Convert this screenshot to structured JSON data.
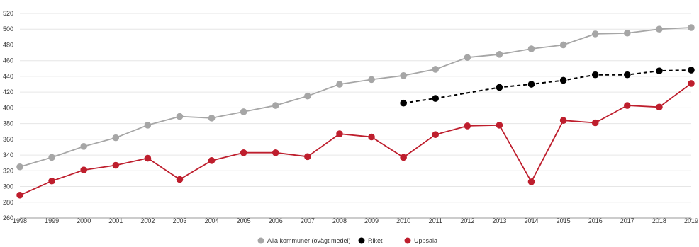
{
  "chart_data": {
    "type": "line",
    "title": "",
    "xlabel": "",
    "ylabel": "",
    "x": [
      "1998",
      "1999",
      "2000",
      "2001",
      "2002",
      "2003",
      "2004",
      "2005",
      "2006",
      "2007",
      "2008",
      "2009",
      "2010",
      "2011",
      "2012",
      "2013",
      "2014",
      "2015",
      "2016",
      "2017",
      "2018",
      "2019"
    ],
    "ylim": [
      260,
      520
    ],
    "yticks": [
      260,
      280,
      300,
      320,
      340,
      360,
      380,
      400,
      420,
      440,
      460,
      480,
      500,
      520
    ],
    "grid": true,
    "legend_position": "bottom",
    "series": [
      {
        "name": "Alla kommuner (ovägt medel)",
        "color": "#a6a6a6",
        "dash": false,
        "values": [
          325,
          337,
          351,
          362,
          378,
          389,
          387,
          395,
          403,
          415,
          430,
          436,
          441,
          449,
          464,
          468,
          475,
          480,
          494,
          495,
          500,
          502
        ]
      },
      {
        "name": "Riket",
        "color": "#000000",
        "dash": true,
        "values": [
          null,
          null,
          null,
          null,
          null,
          null,
          null,
          null,
          null,
          null,
          null,
          null,
          406,
          412,
          null,
          426,
          430,
          435,
          442,
          442,
          447,
          448
        ]
      },
      {
        "name": "Uppsala",
        "color": "#be1e2d",
        "dash": false,
        "values": [
          289,
          307,
          321,
          327,
          336,
          309,
          333,
          343,
          343,
          338,
          367,
          363,
          337,
          366,
          377,
          378,
          306,
          384,
          381,
          403,
          401,
          431
        ]
      }
    ]
  }
}
